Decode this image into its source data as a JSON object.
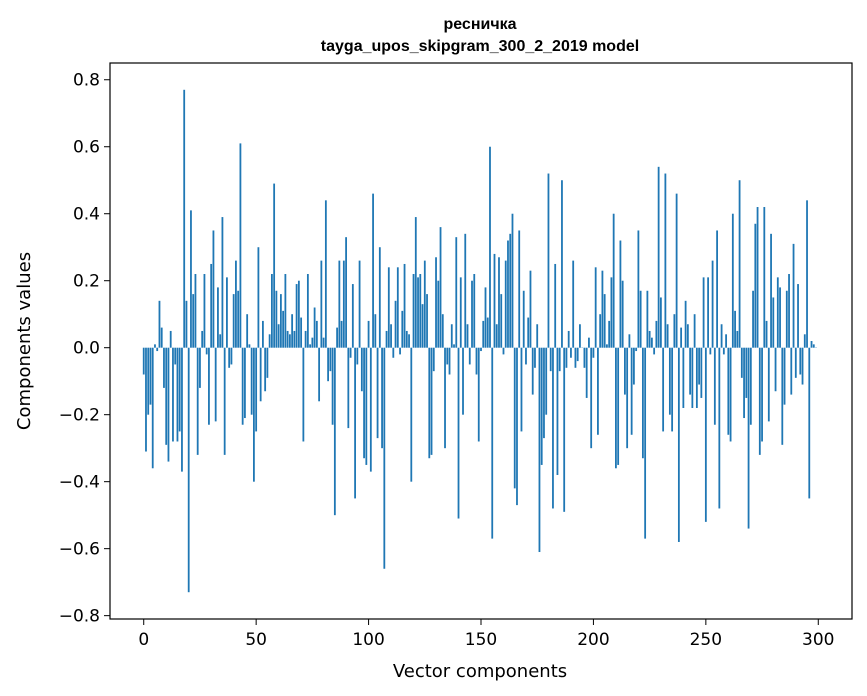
{
  "chart_data": {
    "type": "bar",
    "title_line1": "ресничка",
    "title_line2": "tayga_upos_skipgram_300_2_2019 model",
    "xlabel": "Vector components",
    "ylabel": "Components values",
    "xlim": [
      -15,
      315
    ],
    "ylim": [
      -0.81,
      0.85
    ],
    "xticks": [
      0,
      50,
      100,
      150,
      200,
      250,
      300
    ],
    "xtick_labels": [
      "0",
      "50",
      "100",
      "150",
      "200",
      "250",
      "300"
    ],
    "yticks": [
      0.8,
      0.6,
      0.4,
      0.2,
      0.0,
      -0.2,
      -0.4,
      -0.6,
      -0.8
    ],
    "ytick_labels": [
      "0.8",
      "0.6",
      "0.4",
      "0.2",
      "0.0",
      "−0.2",
      "−0.4",
      "−0.6",
      "−0.8"
    ],
    "bar_color": "#1f77b4",
    "grid": false,
    "values": [
      -0.08,
      -0.31,
      -0.2,
      -0.17,
      -0.36,
      0.01,
      -0.01,
      0.14,
      0.06,
      -0.12,
      -0.29,
      -0.34,
      0.05,
      -0.28,
      -0.05,
      -0.28,
      -0.25,
      -0.37,
      0.77,
      0.14,
      -0.73,
      0.41,
      0.16,
      0.22,
      -0.32,
      -0.12,
      0.05,
      0.22,
      -0.02,
      -0.23,
      0.25,
      0.35,
      -0.22,
      0.18,
      0.04,
      0.39,
      -0.32,
      0.21,
      -0.06,
      -0.05,
      0.16,
      0.26,
      0.17,
      0.61,
      -0.23,
      -0.21,
      0.1,
      0.01,
      -0.2,
      -0.4,
      -0.25,
      0.3,
      -0.16,
      0.08,
      -0.13,
      -0.09,
      0.04,
      0.22,
      0.49,
      0.17,
      0.07,
      0.16,
      0.11,
      0.22,
      0.05,
      0.04,
      0.1,
      0.05,
      0.19,
      0.2,
      0.09,
      -0.28,
      0.05,
      0.22,
      0.01,
      0.03,
      0.12,
      0.08,
      -0.16,
      0.26,
      0.03,
      0.44,
      -0.1,
      -0.07,
      -0.23,
      -0.5,
      0.06,
      0.26,
      0.08,
      0.26,
      0.33,
      -0.24,
      -0.03,
      0.19,
      -0.45,
      -0.05,
      0.26,
      -0.13,
      -0.33,
      -0.35,
      0.08,
      -0.37,
      0.46,
      0.1,
      -0.27,
      0.3,
      -0.3,
      -0.66,
      0.05,
      0.24,
      0.07,
      -0.03,
      0.14,
      0.24,
      -0.02,
      0.11,
      0.25,
      0.05,
      0.04,
      -0.4,
      0.22,
      0.39,
      0.21,
      0.22,
      0.13,
      0.26,
      0.16,
      -0.33,
      -0.32,
      -0.07,
      0.27,
      0.2,
      0.36,
      0.1,
      -0.3,
      -0.05,
      -0.08,
      0.07,
      0.01,
      0.33,
      -0.51,
      0.21,
      -0.2,
      0.34,
      0.07,
      -0.05,
      0.2,
      0.22,
      -0.08,
      -0.28,
      -0.01,
      0.08,
      0.18,
      0.09,
      0.6,
      -0.57,
      0.28,
      0.07,
      0.27,
      0.16,
      -0.02,
      0.26,
      0.32,
      0.34,
      0.4,
      -0.42,
      -0.47,
      0.35,
      -0.25,
      0.17,
      -0.05,
      0.09,
      0.23,
      -0.14,
      -0.06,
      0.07,
      -0.61,
      -0.35,
      -0.27,
      -0.2,
      0.52,
      -0.07,
      -0.48,
      0.25,
      -0.38,
      -0.07,
      0.5,
      -0.49,
      -0.06,
      0.05,
      -0.03,
      0.26,
      -0.06,
      -0.04,
      0.07,
      0.0,
      -0.06,
      -0.15,
      0.03,
      -0.3,
      -0.03,
      0.24,
      -0.26,
      0.1,
      0.23,
      0.16,
      0.01,
      0.08,
      0.21,
      0.4,
      -0.36,
      -0.35,
      0.32,
      0.2,
      -0.14,
      -0.3,
      0.04,
      -0.26,
      -0.11,
      -0.01,
      0.35,
      0.17,
      -0.33,
      -0.57,
      0.17,
      0.05,
      0.03,
      -0.02,
      0.08,
      0.54,
      0.15,
      -0.25,
      0.52,
      0.07,
      -0.2,
      -0.25,
      0.1,
      0.46,
      -0.58,
      0.06,
      -0.18,
      0.14,
      0.07,
      -0.14,
      -0.18,
      0.1,
      -0.18,
      -0.11,
      -0.15,
      0.21,
      -0.52,
      0.21,
      -0.02,
      0.26,
      -0.23,
      0.35,
      -0.48,
      0.07,
      -0.02,
      0.04,
      -0.26,
      -0.28,
      0.4,
      0.11,
      0.05,
      0.5,
      -0.09,
      -0.21,
      -0.15,
      -0.54,
      -0.23,
      0.17,
      0.37,
      0.42,
      -0.32,
      -0.28,
      0.42,
      0.08,
      -0.22,
      0.34,
      0.15,
      -0.13,
      0.21,
      0.18,
      -0.29,
      -0.17,
      0.17,
      0.22,
      -0.14,
      0.31,
      -0.09,
      0.19,
      -0.08,
      -0.11,
      0.04,
      0.44,
      -0.45,
      0.02,
      0.01,
      0.0
    ]
  }
}
